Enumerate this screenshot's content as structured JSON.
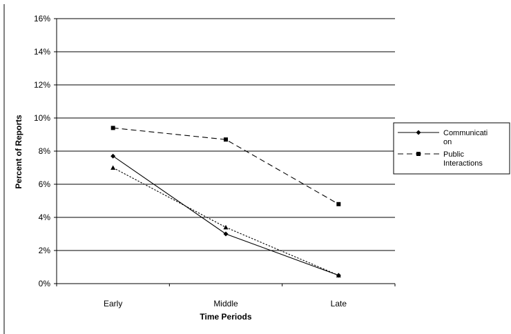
{
  "chart_data": {
    "type": "line",
    "title": "",
    "xlabel": "Time Periods",
    "ylabel": "Percent of Reports",
    "categories": [
      "Early",
      "Middle",
      "Late"
    ],
    "ylim": [
      0,
      16
    ],
    "yticks": [
      0,
      2,
      4,
      6,
      8,
      10,
      12,
      14,
      16
    ],
    "ytick_labels": [
      "0%",
      "2%",
      "4%",
      "6%",
      "8%",
      "10%",
      "12%",
      "14%",
      "16%"
    ],
    "grid": "horizontal",
    "legend": "right",
    "series": [
      {
        "name": "Communication",
        "legend_lines": [
          "Communicati",
          "on"
        ],
        "values": [
          7.7,
          3.0,
          0.5
        ],
        "marker": "diamond",
        "dash": "solid",
        "color": "#000000"
      },
      {
        "name": "Public Interactions",
        "legend_lines": [
          "Public",
          "Interactions"
        ],
        "values": [
          9.4,
          8.7,
          4.8
        ],
        "marker": "square",
        "dash": "dashed",
        "color": "#000000"
      },
      {
        "values": [
          7.0,
          3.4,
          0.5
        ],
        "marker": "triangle",
        "dash": "dotted",
        "color": "#000000"
      }
    ]
  }
}
